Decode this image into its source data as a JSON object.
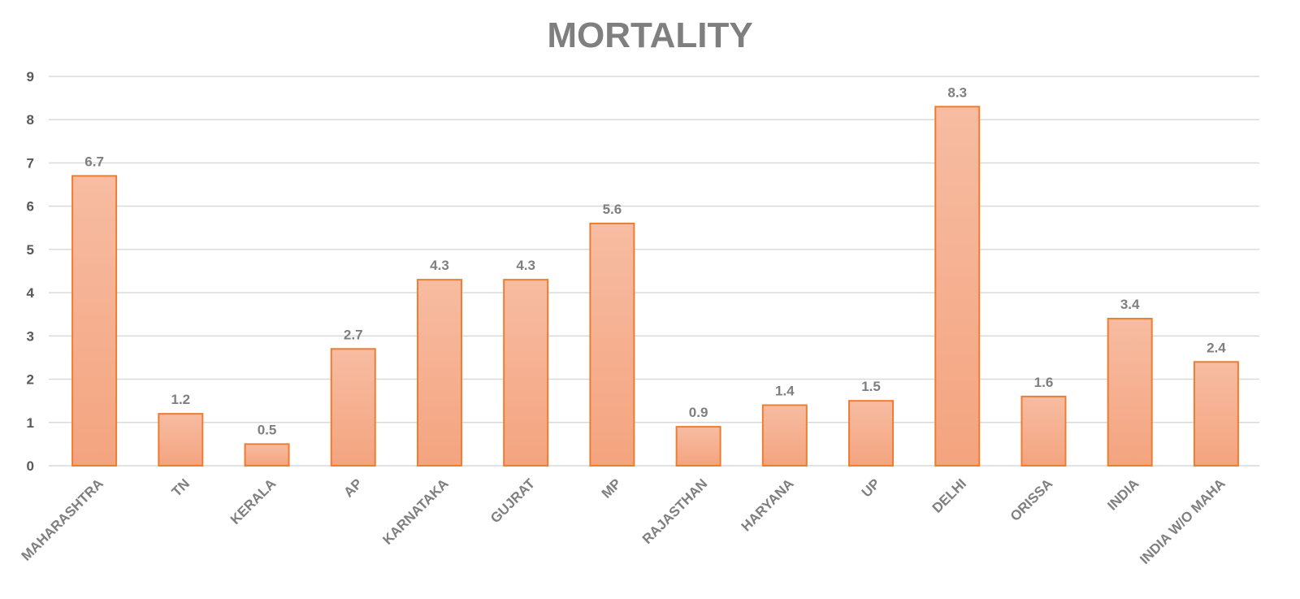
{
  "chart_data": {
    "type": "bar",
    "title": "MORTALITY",
    "xlabel": "",
    "ylabel": "",
    "ylim": [
      0,
      9
    ],
    "yticks": [
      "0",
      "1",
      "2",
      "3",
      "4",
      "5",
      "6",
      "7",
      "8",
      "9"
    ],
    "grid": true,
    "legend": "none",
    "categories": [
      "MAHARASHTRA",
      "TN",
      "KERALA",
      "AP",
      "KARNATAKA",
      "GUJRAT",
      "MP",
      "RAJASTHAN",
      "HARYANA",
      "UP",
      "DELHI",
      "ORISSA",
      "INDIA",
      "INDIA W/O MAHA"
    ],
    "values": [
      6.7,
      1.2,
      0.5,
      2.7,
      4.3,
      4.3,
      5.6,
      0.9,
      1.4,
      1.5,
      8.3,
      1.6,
      3.4,
      2.4
    ],
    "data_labels": [
      "6.7",
      "1.2",
      "0.5",
      "2.7",
      "4.3",
      "4.3",
      "5.6",
      "0.9",
      "1.4",
      "1.5",
      "8.3",
      "1.6",
      "3.4",
      "2.4"
    ],
    "colors": {
      "bar_top": "#f7bca2",
      "bar_bottom": "#f4a47f",
      "bar_border": "#ed7d31",
      "grid": "#d9d9d9",
      "title": "#7f7f7f"
    }
  }
}
